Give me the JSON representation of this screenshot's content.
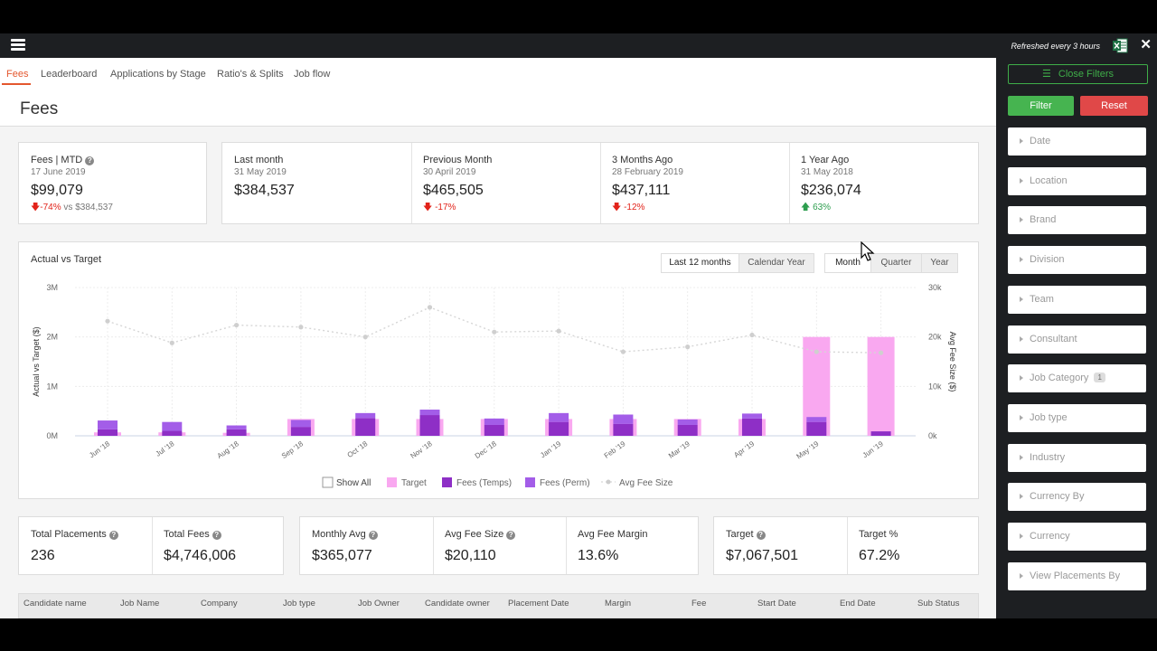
{
  "topbar": {
    "refreshed": "Refreshed every 3 hours"
  },
  "tabs": [
    "Fees",
    "Leaderboard",
    "Applications by Stage",
    "Ratio's & Splits",
    "Job flow"
  ],
  "page_title": "Fees",
  "mtd": {
    "label": "Fees | MTD",
    "date": "17 June 2019",
    "value": "$99,079",
    "change": "-74%",
    "vs": "vs $384,537"
  },
  "periods": [
    {
      "label": "Last month",
      "date": "31 May 2019",
      "value": "$384,537",
      "change": ""
    },
    {
      "label": "Previous Month",
      "date": "30 April 2019",
      "value": "$465,505",
      "change": "-17%"
    },
    {
      "label": "3 Months Ago",
      "date": "28 February 2019",
      "value": "$437,111",
      "change": "-12%"
    },
    {
      "label": "1 Year Ago",
      "date": "31 May 2018",
      "value": "$236,074",
      "change": "63%"
    }
  ],
  "chart_controls": {
    "range": [
      "Last 12 months",
      "Calendar Year"
    ],
    "granularity": [
      "Month",
      "Quarter",
      "Year"
    ]
  },
  "chart_data": {
    "type": "bar",
    "title": "Actual vs Target",
    "ylabel": "Actual vs Target ($)",
    "y2label": "Avg Fee Size ($)",
    "ylim": [
      0,
      3000000
    ],
    "y2lim": [
      0,
      30000
    ],
    "yticks": [
      "0M",
      "1M",
      "2M",
      "3M"
    ],
    "y2ticks": [
      "0k",
      "10k",
      "20k",
      "30k"
    ],
    "categories": [
      "Jun '18",
      "Jul '18",
      "Aug '18",
      "Sep '18",
      "Oct '18",
      "Nov '18",
      "Dec '18",
      "Jan '19",
      "Feb '19",
      "Mar '19",
      "Apr '19",
      "May '19",
      "Jun '19"
    ],
    "series": [
      {
        "name": "Target",
        "color": "#f9a8f0",
        "values": [
          70000,
          70000,
          60000,
          340000,
          340000,
          340000,
          340000,
          340000,
          340000,
          340000,
          340000,
          2000000,
          2000000
        ]
      },
      {
        "name": "Fees (Temps)",
        "color": "#8e2fc6",
        "values": [
          130000,
          100000,
          130000,
          180000,
          360000,
          420000,
          220000,
          280000,
          240000,
          220000,
          350000,
          280000,
          90000
        ]
      },
      {
        "name": "Fees (Perm)",
        "color": "#a35de8",
        "values": [
          180000,
          180000,
          80000,
          140000,
          100000,
          110000,
          130000,
          180000,
          190000,
          110000,
          100000,
          100000,
          0
        ]
      },
      {
        "name": "Avg Fee Size",
        "color": "#cccccc",
        "axis": "y2",
        "values": [
          23200,
          18800,
          22400,
          22000,
          20000,
          26000,
          21000,
          21200,
          17000,
          18000,
          20400,
          17000,
          16800
        ]
      }
    ],
    "legend": [
      "Show All",
      "Target",
      "Fees (Temps)",
      "Fees (Perm)",
      "Avg Fee Size"
    ],
    "legend_position": "bottom"
  },
  "summary": [
    {
      "label": "Total Placements",
      "value": "236",
      "help": true
    },
    {
      "label": "Total Fees",
      "value": "$4,746,006",
      "help": true
    },
    {
      "label": "Monthly Avg",
      "value": "$365,077",
      "help": true
    },
    {
      "label": "Avg Fee Size",
      "value": "$20,110",
      "help": true
    },
    {
      "label": "Avg Fee Margin",
      "value": "13.6%",
      "help": false
    },
    {
      "label": "Target",
      "value": "$7,067,501",
      "help": true
    },
    {
      "label": "Target %",
      "value": "67.2%",
      "help": false
    }
  ],
  "table_headers": [
    "Candidate name",
    "Job Name",
    "Company",
    "Job type",
    "Job Owner",
    "Candidate owner",
    "Placement Date",
    "Margin",
    "Fee",
    "Start Date",
    "End Date",
    "Sub Status"
  ],
  "sidebar": {
    "close_filters": "Close Filters",
    "filter": "Filter",
    "reset": "Reset",
    "filters": [
      {
        "label": "Date",
        "badge": ""
      },
      {
        "label": "Location",
        "badge": ""
      },
      {
        "label": "Brand",
        "badge": ""
      },
      {
        "label": "Division",
        "badge": ""
      },
      {
        "label": "Team",
        "badge": ""
      },
      {
        "label": "Consultant",
        "badge": ""
      },
      {
        "label": "Job Category",
        "badge": "1"
      },
      {
        "label": "Job type",
        "badge": ""
      },
      {
        "label": "Industry",
        "badge": ""
      },
      {
        "label": "Currency By",
        "badge": ""
      },
      {
        "label": "Currency",
        "badge": ""
      },
      {
        "label": "View Placements By",
        "badge": ""
      }
    ]
  },
  "colors": {
    "accent": "#e4572e",
    "filter_green": "#46b450",
    "reset_red": "#e04848",
    "down": "#e2231a",
    "up": "#2e9e4f"
  }
}
